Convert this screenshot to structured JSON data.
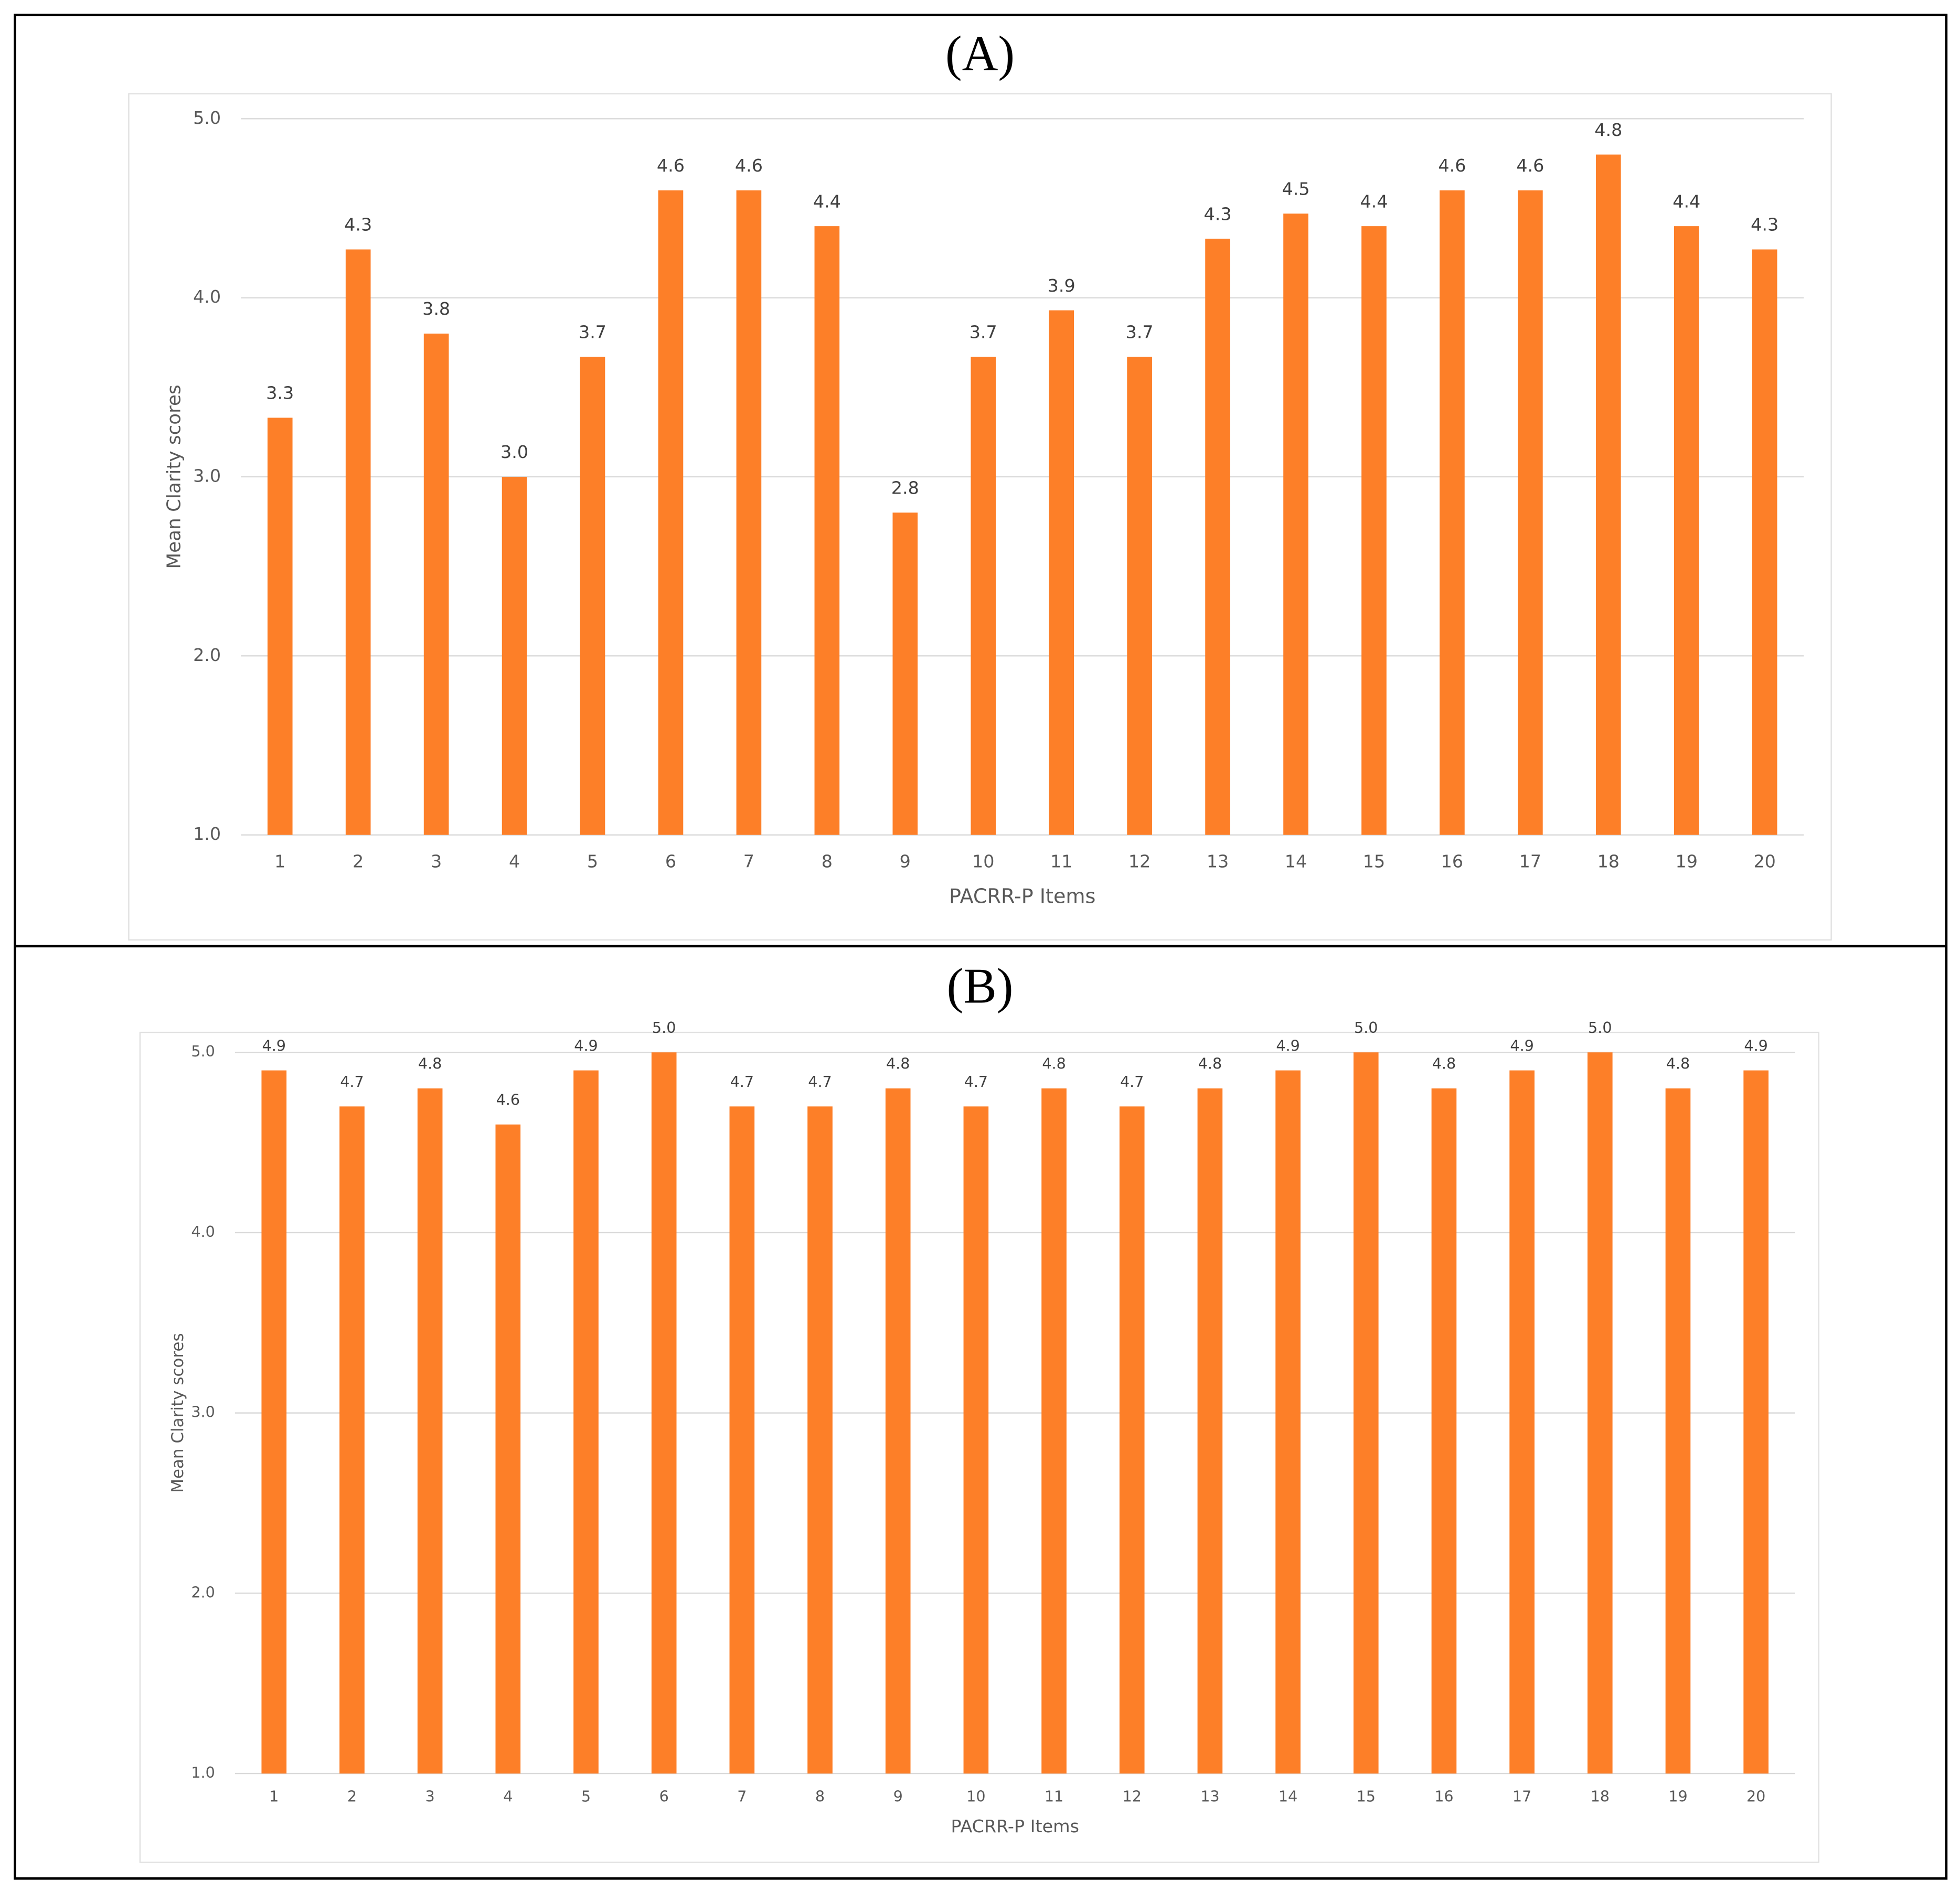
{
  "chart_data": [
    {
      "type": "bar",
      "title": "(A)",
      "xlabel": "PACRR-P Items",
      "ylabel": "Mean Clarity scores",
      "categories": [
        "1",
        "2",
        "3",
        "4",
        "5",
        "6",
        "7",
        "8",
        "9",
        "10",
        "11",
        "12",
        "13",
        "14",
        "15",
        "16",
        "17",
        "18",
        "19",
        "20"
      ],
      "values": [
        3.33,
        4.27,
        3.8,
        3.0,
        3.67,
        4.6,
        4.6,
        4.4,
        2.8,
        3.67,
        3.93,
        3.67,
        4.33,
        4.47,
        4.4,
        4.6,
        4.6,
        4.8,
        4.4,
        4.27
      ],
      "value_labels": [
        "3.3",
        "4.3",
        "3.8",
        "3.0",
        "3.7",
        "4.6",
        "4.6",
        "4.4",
        "2.8",
        "3.7",
        "3.9",
        "3.7",
        "4.3",
        "4.5",
        "4.4",
        "4.6",
        "4.6",
        "4.8",
        "4.4",
        "4.3"
      ],
      "color": "#fd7f28",
      "ylim": [
        1,
        5
      ],
      "yticks": [
        {
          "value": 1,
          "label": "1.0"
        },
        {
          "value": 2,
          "label": "2.0"
        },
        {
          "value": 3,
          "label": "3.0"
        },
        {
          "value": 4,
          "label": "4.0"
        },
        {
          "value": 5,
          "label": "5.0"
        }
      ],
      "grid": true
    },
    {
      "type": "bar",
      "title": "(B)",
      "xlabel": "PACRR-P Items",
      "ylabel": "Mean Clarity scores",
      "categories": [
        "1",
        "2",
        "3",
        "4",
        "5",
        "6",
        "7",
        "8",
        "9",
        "10",
        "11",
        "12",
        "13",
        "14",
        "15",
        "16",
        "17",
        "18",
        "19",
        "20"
      ],
      "values": [
        4.9,
        4.7,
        4.8,
        4.6,
        4.9,
        5.0,
        4.7,
        4.7,
        4.8,
        4.7,
        4.8,
        4.7,
        4.8,
        4.9,
        5.0,
        4.8,
        4.9,
        5.0,
        4.8,
        4.9
      ],
      "value_labels": [
        "4.9",
        "4.7",
        "4.8",
        "4.6",
        "4.9",
        "5.0",
        "4.7",
        "4.7",
        "4.8",
        "4.7",
        "4.8",
        "4.7",
        "4.8",
        "4.9",
        "5.0",
        "4.8",
        "4.9",
        "5.0",
        "4.8",
        "4.9"
      ],
      "color": "#fd7f28",
      "ylim": [
        1,
        5
      ],
      "yticks": [
        {
          "value": 1,
          "label": "1.0"
        },
        {
          "value": 2,
          "label": "2.0"
        },
        {
          "value": 3,
          "label": "3.0"
        },
        {
          "value": 4,
          "label": "4.0"
        },
        {
          "value": 5,
          "label": "5.0"
        }
      ],
      "grid": true
    }
  ]
}
